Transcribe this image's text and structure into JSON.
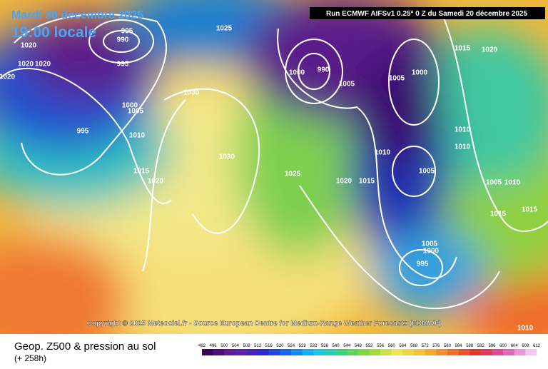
{
  "header": {
    "date": "Mardi 30 decembre 2025",
    "time": "19:00 locale",
    "run": "Run ECMWF AIFSv1 0.25° 0 Z du Samedi 20 décembre 2025"
  },
  "copyright": "Copyright © 2025 Meteociel.fr - Source European Centre for Medium-Range Weather Forecasts (ECMWF)",
  "footer": {
    "title": "Geop. Z500 & pression au sol",
    "subtitle": "(+ 258h)"
  },
  "legend": {
    "ticks": [
      492,
      496,
      500,
      504,
      508,
      512,
      516,
      520,
      524,
      528,
      532,
      536,
      540,
      544,
      548,
      552,
      556,
      560,
      564,
      568,
      572,
      576,
      580,
      584,
      588,
      592,
      596,
      600,
      604,
      608,
      612
    ]
  },
  "isobars": [
    "995",
    "990",
    "995",
    "1020",
    "1020",
    "1020",
    "1020",
    "1025",
    "1000",
    "990",
    "1005",
    "1005",
    "1000",
    "1010",
    "1015",
    "1020",
    "995",
    "1000",
    "1005",
    "1010",
    "1015",
    "1020",
    "1030",
    "1030",
    "1025",
    "1020",
    "1015",
    "1010",
    "1005",
    "1005",
    "1000",
    "995",
    "1015",
    "1010",
    "1005",
    "1010",
    "1015",
    "1010"
  ]
}
